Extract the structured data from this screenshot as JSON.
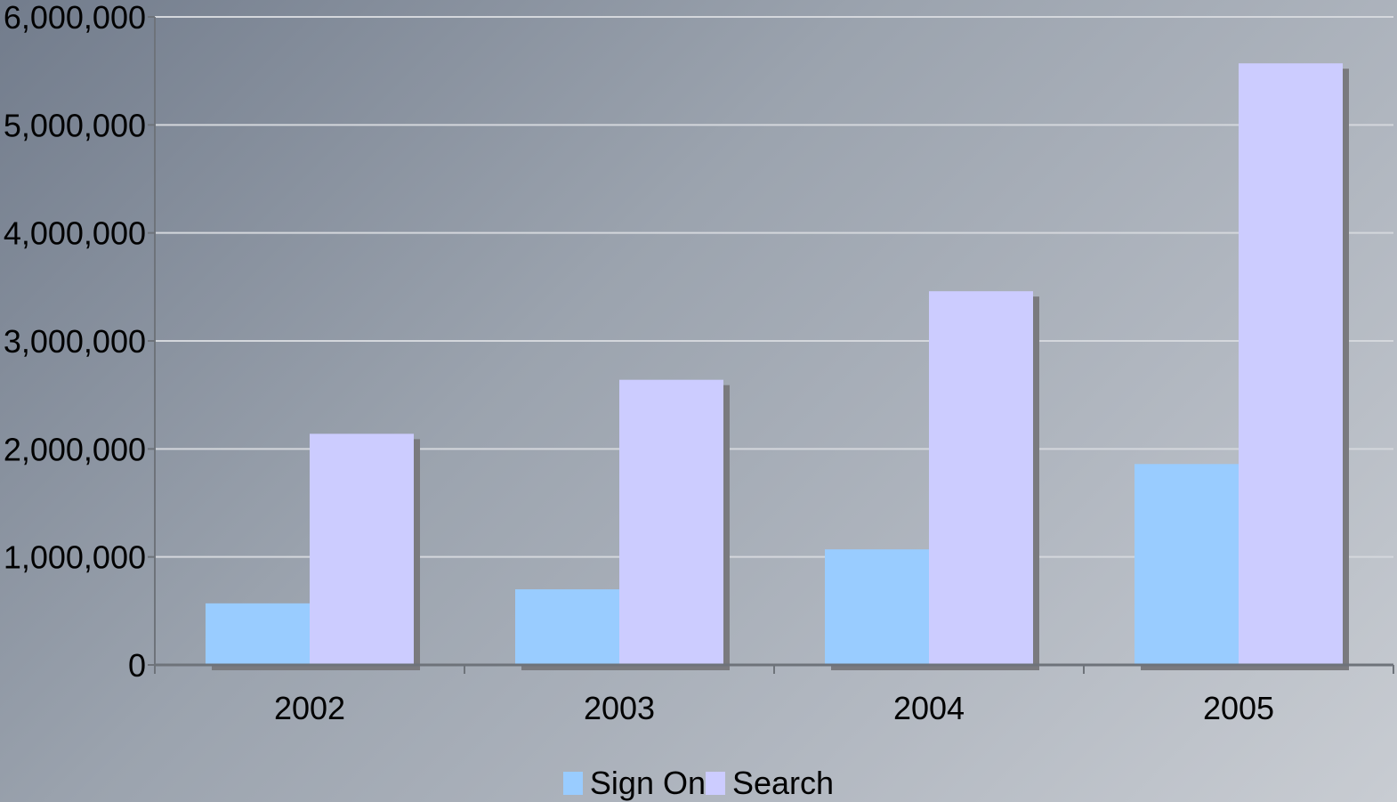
{
  "chart_data": {
    "type": "bar",
    "title": "",
    "xlabel": "",
    "ylabel": "",
    "categories": [
      "2002",
      "2003",
      "2004",
      "2005"
    ],
    "series": [
      {
        "name": "Sign On",
        "values": [
          570000,
          700000,
          1070000,
          1860000
        ],
        "color": "#99ccff"
      },
      {
        "name": "Search",
        "values": [
          2140000,
          2640000,
          3460000,
          5570000
        ],
        "color": "#ccccff"
      }
    ],
    "ylim": [
      0,
      6000000
    ],
    "yticks": [
      0,
      1000000,
      2000000,
      3000000,
      4000000,
      5000000,
      6000000
    ],
    "ytick_labels": [
      "0",
      "1,000,000",
      "2,000,000",
      "3,000,000",
      "4,000,000",
      "5,000,000",
      "6,000,000"
    ],
    "grid": true,
    "legend_position": "bottom"
  },
  "legend": {
    "items": [
      {
        "label": "Sign On",
        "color": "#99ccff"
      },
      {
        "label": "Search",
        "color": "#ccccff"
      }
    ]
  }
}
